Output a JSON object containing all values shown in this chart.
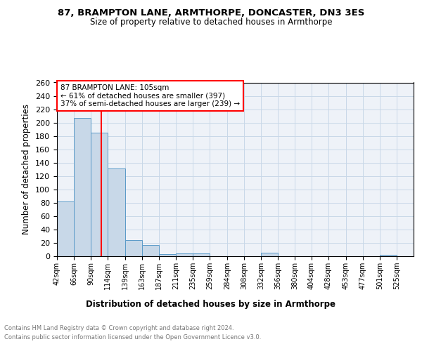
{
  "title1": "87, BRAMPTON LANE, ARMTHORPE, DONCASTER, DN3 3ES",
  "title2": "Size of property relative to detached houses in Armthorpe",
  "xlabel": "Distribution of detached houses by size in Armthorpe",
  "ylabel": "Number of detached properties",
  "bar_labels": [
    "42sqm",
    "66sqm",
    "90sqm",
    "114sqm",
    "139sqm",
    "163sqm",
    "187sqm",
    "211sqm",
    "235sqm",
    "259sqm",
    "284sqm",
    "308sqm",
    "332sqm",
    "356sqm",
    "380sqm",
    "404sqm",
    "428sqm",
    "453sqm",
    "477sqm",
    "501sqm",
    "525sqm"
  ],
  "bar_values_full": [
    82,
    207,
    185,
    131,
    24,
    17,
    3,
    4,
    4,
    0,
    0,
    0,
    5,
    0,
    0,
    0,
    0,
    0,
    0,
    2,
    0
  ],
  "bin_edges": [
    42,
    66,
    90,
    114,
    139,
    163,
    187,
    211,
    235,
    259,
    284,
    308,
    332,
    356,
    380,
    404,
    428,
    453,
    477,
    501,
    525,
    549
  ],
  "bar_color": "#c8d8e8",
  "bar_edge_color": "#5a9ac8",
  "annotation_line1": "87 BRAMPTON LANE: 105sqm",
  "annotation_line2": "← 61% of detached houses are smaller (397)",
  "annotation_line3": "37% of semi-detached houses are larger (239) →",
  "vline_x": 105,
  "vline_color": "red",
  "ylim_max": 260,
  "yticks": [
    0,
    20,
    40,
    60,
    80,
    100,
    120,
    140,
    160,
    180,
    200,
    220,
    240,
    260
  ],
  "grid_color": "#c8d8e8",
  "bg_color": "#eef2f8",
  "footer_line1": "Contains HM Land Registry data © Crown copyright and database right 2024.",
  "footer_line2": "Contains public sector information licensed under the Open Government Licence v3.0."
}
